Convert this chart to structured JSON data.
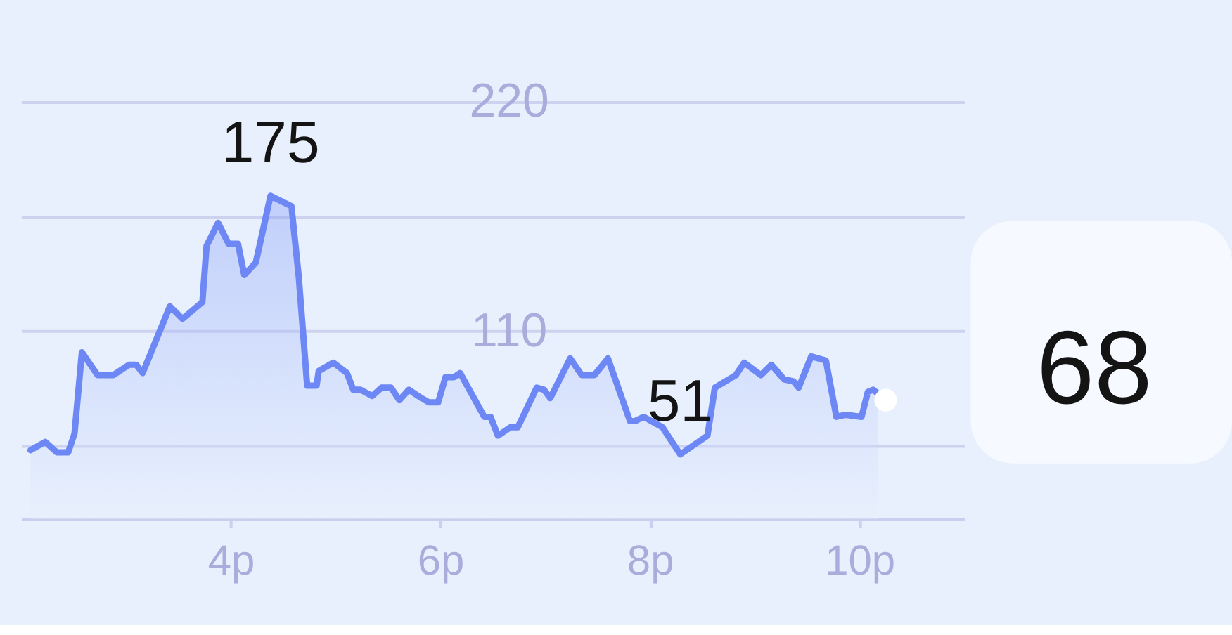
{
  "chart_data": [
    {
      "type": "area",
      "xlim": [
        2,
        11
      ],
      "xticks": [
        {
          "value": 4,
          "label": "4p"
        },
        {
          "value": 6,
          "label": "6p"
        },
        {
          "value": 8,
          "label": "8p"
        },
        {
          "value": 10,
          "label": "10p"
        }
      ],
      "ylim": [
        20,
        220
      ],
      "yticks": [
        {
          "value": 55,
          "label": null
        },
        110,
        {
          "value": 165,
          "label": null
        },
        220
      ],
      "grid": "y",
      "line_style": "solid",
      "series": [
        {
          "type": "area",
          "color": "#6d87f5",
          "x": [
            2.09,
            2.23,
            2.34,
            2.45,
            2.51,
            2.58,
            2.73,
            2.88,
            3.03,
            3.1,
            3.16,
            3.42,
            3.54,
            3.73,
            3.77,
            3.88,
            3.98,
            4.07,
            4.13,
            4.24,
            4.38,
            4.58,
            4.65,
            4.73,
            4.82,
            4.84,
            4.98,
            5.11,
            5.17,
            5.24,
            5.35,
            5.44,
            5.53,
            5.61,
            5.7,
            5.82,
            5.89,
            5.98,
            6.05,
            6.13,
            6.19,
            6.42,
            6.48,
            6.55,
            6.67,
            6.74,
            6.92,
            6.99,
            7.05,
            7.24,
            7.35,
            7.47,
            7.6,
            7.81,
            7.86,
            7.94,
            8.12,
            8.29,
            8.55,
            8.62,
            8.82,
            8.9,
            9.06,
            9.16,
            9.28,
            9.37,
            9.42,
            9.54,
            9.68,
            9.78,
            9.87,
            10.02,
            10.08,
            10.13,
            10.18
          ],
          "values": [
            53,
            57,
            52,
            52,
            61,
            100,
            89,
            89,
            94,
            94,
            90,
            122,
            116,
            124,
            151,
            162,
            152,
            152,
            137,
            143,
            175,
            170,
            136,
            84,
            84,
            91,
            95,
            90,
            82,
            82,
            79,
            83,
            83,
            77,
            82,
            78,
            76,
            76,
            88,
            88,
            90,
            69,
            69,
            60,
            64,
            64,
            83,
            82,
            78,
            97,
            89,
            89,
            97,
            67,
            67,
            69,
            64,
            51,
            60,
            83,
            89,
            95,
            89,
            94,
            87,
            86,
            83,
            98,
            96,
            69,
            70,
            69,
            81,
            82,
            80
          ],
          "value_labels": [
            null,
            null,
            null,
            null,
            null,
            null,
            null,
            null,
            null,
            null,
            null,
            null,
            null,
            null,
            null,
            null,
            null,
            null,
            null,
            null,
            "175",
            null,
            null,
            null,
            null,
            null,
            null,
            null,
            null,
            null,
            null,
            null,
            null,
            null,
            null,
            null,
            null,
            null,
            null,
            null,
            null,
            null,
            null,
            null,
            null,
            null,
            null,
            null,
            null,
            null,
            null,
            null,
            null,
            null,
            null,
            null,
            null,
            "51",
            null,
            null,
            null,
            null,
            null,
            null,
            null,
            null,
            null,
            null,
            null,
            null,
            null,
            null,
            null,
            null,
            null
          ]
        },
        {
          "type": "scatter",
          "marker": "circle",
          "color": "#ffffff",
          "x": [
            10.25
          ],
          "values": [
            77
          ]
        }
      ]
    },
    {
      "type": "other",
      "annotations": [
        "68"
      ]
    }
  ]
}
